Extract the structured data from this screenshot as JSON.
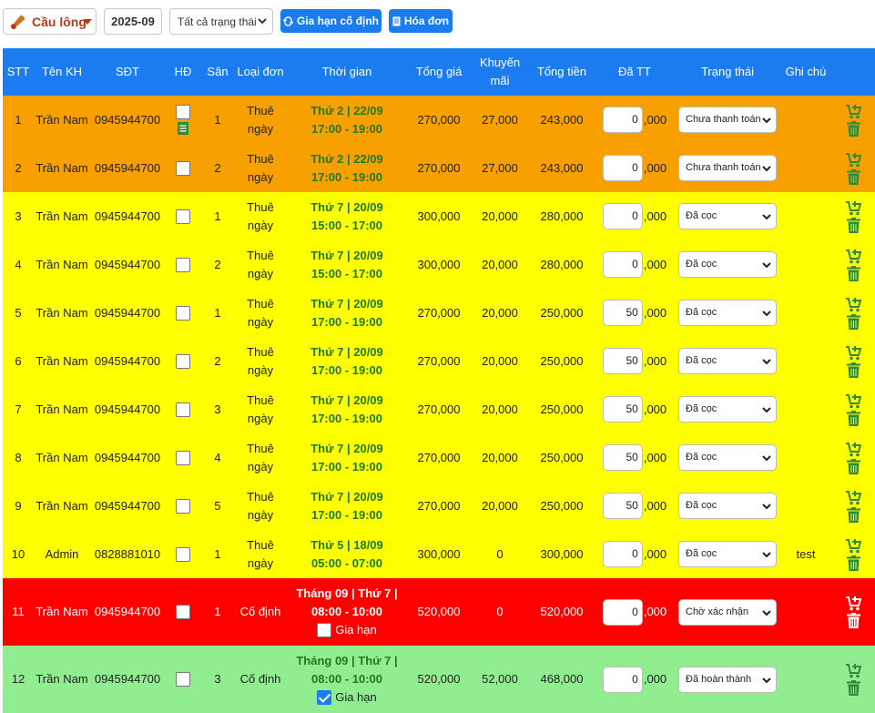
{
  "toolbar": {
    "sport_label": "Cầu lông",
    "month_value": "2025-09",
    "status_filter": "Tất cả trạng thái",
    "extend_button": "Gia hạn cố định",
    "invoice_button": "Hóa đơn"
  },
  "columns": [
    "STT",
    "Tên KH",
    "SĐT",
    "HĐ",
    "Sân",
    "Loại đơn",
    "Thời gian",
    "Tổng giá",
    "Khuyến mãi",
    "Tổng tiền",
    "Đã TT",
    "Trạng thái",
    "Ghi chú"
  ],
  "paid_suffix": ",000",
  "renew_label": "Gia hạn",
  "rows": [
    {
      "stt": "1",
      "name": "Trần Nam",
      "phone": "0945944700",
      "court": "1",
      "type": "Thuê ngày",
      "time1": "Thứ 2 | 22/09",
      "time2": "17:00 - 19:00",
      "total": "270,000",
      "discount": "27,000",
      "net": "243,000",
      "paid": "0",
      "status": "Chưa thanh toán",
      "note": ""
    },
    {
      "stt": "2",
      "name": "Trần Nam",
      "phone": "0945944700",
      "court": "2",
      "type": "Thuê ngày",
      "time1": "Thứ 2 | 22/09",
      "time2": "17:00 - 19:00",
      "total": "270,000",
      "discount": "27,000",
      "net": "243,000",
      "paid": "0",
      "status": "Chưa thanh toán",
      "note": ""
    },
    {
      "stt": "3",
      "name": "Trần Nam",
      "phone": "0945944700",
      "court": "1",
      "type": "Thuê ngày",
      "time1": "Thứ 7 | 20/09",
      "time2": "15:00 - 17:00",
      "total": "300,000",
      "discount": "20,000",
      "net": "280,000",
      "paid": "0",
      "status": "Đã cọc",
      "note": ""
    },
    {
      "stt": "4",
      "name": "Trần Nam",
      "phone": "0945944700",
      "court": "2",
      "type": "Thuê ngày",
      "time1": "Thứ 7 | 20/09",
      "time2": "15:00 - 17:00",
      "total": "300,000",
      "discount": "20,000",
      "net": "280,000",
      "paid": "0",
      "status": "Đã cọc",
      "note": ""
    },
    {
      "stt": "5",
      "name": "Trần Nam",
      "phone": "0945944700",
      "court": "1",
      "type": "Thuê ngày",
      "time1": "Thứ 7 | 20/09",
      "time2": "17:00 - 19:00",
      "total": "270,000",
      "discount": "20,000",
      "net": "250,000",
      "paid": "50",
      "status": "Đã cọc",
      "note": ""
    },
    {
      "stt": "6",
      "name": "Trần Nam",
      "phone": "0945944700",
      "court": "2",
      "type": "Thuê ngày",
      "time1": "Thứ 7 | 20/09",
      "time2": "17:00 - 19:00",
      "total": "270,000",
      "discount": "20,000",
      "net": "250,000",
      "paid": "50",
      "status": "Đã cọc",
      "note": ""
    },
    {
      "stt": "7",
      "name": "Trần Nam",
      "phone": "0945944700",
      "court": "3",
      "type": "Thuê ngày",
      "time1": "Thứ 7 | 20/09",
      "time2": "17:00 - 19:00",
      "total": "270,000",
      "discount": "20,000",
      "net": "250,000",
      "paid": "50",
      "status": "Đã cọc",
      "note": ""
    },
    {
      "stt": "8",
      "name": "Trần Nam",
      "phone": "0945944700",
      "court": "4",
      "type": "Thuê ngày",
      "time1": "Thứ 7 | 20/09",
      "time2": "17:00 - 19:00",
      "total": "270,000",
      "discount": "20,000",
      "net": "250,000",
      "paid": "50",
      "status": "Đã cọc",
      "note": ""
    },
    {
      "stt": "9",
      "name": "Trần Nam",
      "phone": "0945944700",
      "court": "5",
      "type": "Thuê ngày",
      "time1": "Thứ 7 | 20/09",
      "time2": "17:00 - 19:00",
      "total": "270,000",
      "discount": "20,000",
      "net": "250,000",
      "paid": "50",
      "status": "Đã cọc",
      "note": ""
    },
    {
      "stt": "10",
      "name": "Admin",
      "phone": "0828881010",
      "court": "1",
      "type": "Thuê ngày",
      "time1": "Thứ 5 | 18/09",
      "time2": "05:00 - 07:00",
      "total": "300,000",
      "discount": "0",
      "net": "300,000",
      "paid": "0",
      "status": "Đã cọc",
      "note": "test"
    },
    {
      "stt": "11",
      "name": "Trần Nam",
      "phone": "0945944700",
      "court": "1",
      "type": "Cố định",
      "time1": "Tháng 09 | Thứ 7 |",
      "time2": "08:00 - 10:00",
      "total": "520,000",
      "discount": "0",
      "net": "520,000",
      "paid": "0",
      "status": "Chờ xác nhận",
      "note": ""
    },
    {
      "stt": "12",
      "name": "Trần Nam",
      "phone": "0945944700",
      "court": "3",
      "type": "Cố định",
      "time1": "Tháng 09 | Thứ 7 |",
      "time2": "08:00 - 10:00",
      "total": "520,000",
      "discount": "52,000",
      "net": "468,000",
      "paid": "0",
      "status": "Đã hoàn thành",
      "note": ""
    }
  ],
  "colors": {
    "header": "#1a7cf0",
    "orange": "#f7a000",
    "yellow": "#ffff00",
    "red": "#ff0000",
    "green": "#90ee90",
    "time_text": "#1f7a1f"
  }
}
